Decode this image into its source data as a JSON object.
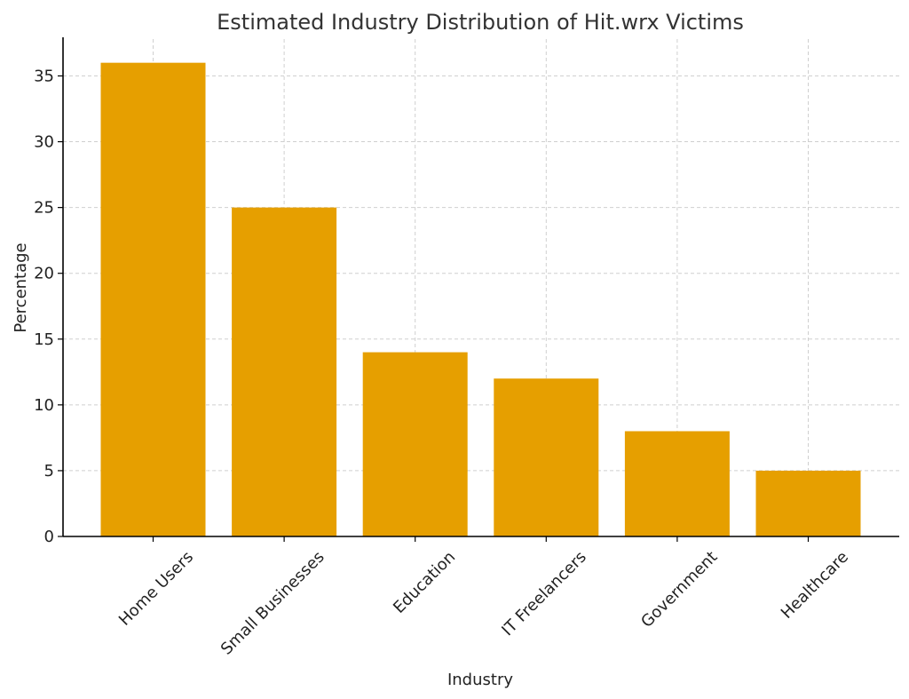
{
  "chart_data": {
    "type": "bar",
    "title": "Estimated Industry Distribution of Hit.wrx Victims",
    "xlabel": "Industry",
    "ylabel": "Percentage",
    "categories": [
      "Home Users",
      "Small Businesses",
      "Education",
      "IT Freelancers",
      "Government",
      "Healthcare"
    ],
    "values": [
      36,
      25,
      14,
      12,
      8,
      5
    ],
    "ylim": [
      0,
      37.8
    ],
    "yticks": [
      0,
      5,
      10,
      15,
      20,
      25,
      30,
      35
    ],
    "grid": true,
    "bar_color": "#E69F00"
  }
}
